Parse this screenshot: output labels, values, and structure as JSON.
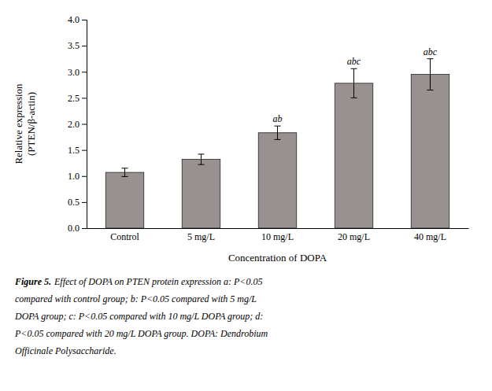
{
  "chart_data": {
    "type": "bar",
    "categories": [
      "Control",
      "5 mg/L",
      "10 mg/L",
      "20 mg/L",
      "40 mg/L"
    ],
    "values": [
      1.07,
      1.32,
      1.83,
      2.78,
      2.95
    ],
    "errors": [
      0.08,
      0.1,
      0.13,
      0.28,
      0.3
    ],
    "annotations": [
      null,
      null,
      "ab",
      "abc",
      "abc"
    ],
    "color": "#999090",
    "ylabel": [
      "Relative expression",
      "(PTEN/β-actin)"
    ],
    "xlabel": "Concentration of DOPA",
    "ylim": [
      0,
      4
    ],
    "yticks": [
      {
        "value": 0,
        "label": "0.0"
      },
      0.5,
      {
        "value": 1.0,
        "label": "1.0"
      },
      1.5,
      {
        "value": 2.0,
        "label": "2.0"
      },
      2.5,
      {
        "value": 3.0,
        "label": "3.0"
      },
      3.5,
      {
        "value": 4.0,
        "label": "4.0"
      }
    ],
    "caption_label": "Figure 5.",
    "caption_lines": [
      "Effect of DOPA on PTEN protein expression a: P<0.05",
      "compared with control group; b: P<0.05 compared with 5 mg/L",
      "DOPA group; c: P<0.05 compared with 10 mg/L DOPA group; d:",
      "P<0.05 compared with 20 mg/L DOPA group. DOPA: Dendrobium",
      "Officinale Polysaccharide."
    ]
  }
}
